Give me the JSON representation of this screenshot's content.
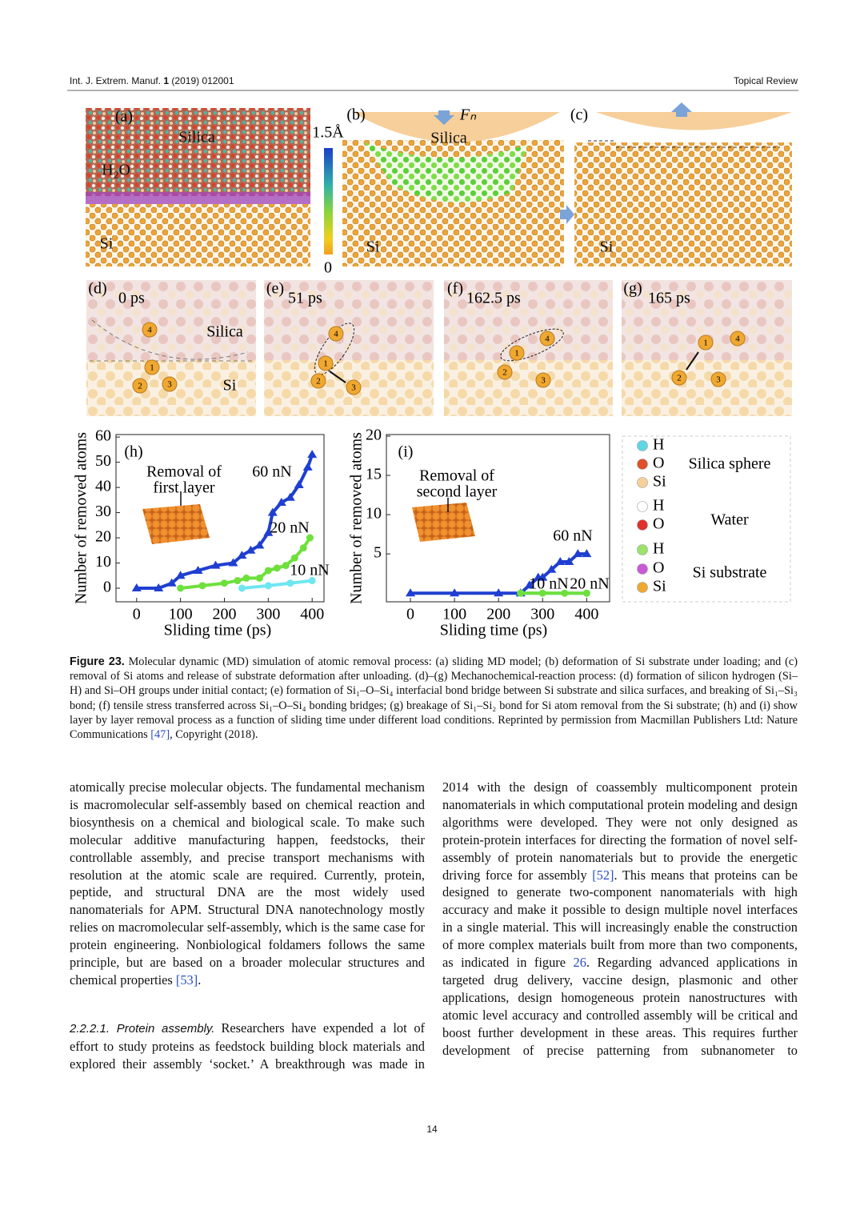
{
  "header": {
    "journal": "Int. J. Extrem. Manuf.",
    "volume": "1",
    "issue": "(2019) 012001",
    "section": "Topical Review"
  },
  "figure": {
    "panels": [
      {
        "label": "(a)",
        "texts": [
          "Silica",
          "H₂O",
          "Si"
        ]
      },
      {
        "label": "(b)",
        "force": "Fₙ",
        "texts": [
          "Silica",
          "Si"
        ]
      },
      {
        "label": "(c)",
        "texts": [
          "Si"
        ]
      },
      {
        "label": "(d)",
        "time": "0 ps",
        "texts": [
          "Silica",
          "Si"
        ],
        "atoms": [
          "4",
          "1",
          "2",
          "3"
        ]
      },
      {
        "label": "(e)",
        "time": "51 ps",
        "atoms": [
          "4",
          "1",
          "2",
          "3"
        ]
      },
      {
        "label": "(f)",
        "time": "162.5 ps",
        "atoms": [
          "4",
          "1",
          "2",
          "3"
        ]
      },
      {
        "label": "(g)",
        "time": "165 ps",
        "atoms": [
          "1",
          "4",
          "2",
          "3"
        ]
      }
    ],
    "colorbar": {
      "max_label": "1.5Å",
      "min_label": "0"
    },
    "legend": [
      {
        "name": "Silica sphere",
        "atoms": [
          {
            "label": "H",
            "color": "#5fd6e6"
          },
          {
            "label": "O",
            "color": "#e0502a"
          },
          {
            "label": "Si",
            "color": "#f6cf9a"
          }
        ]
      },
      {
        "name": "Water",
        "atoms": [
          {
            "label": "H",
            "color": "#ffffff"
          },
          {
            "label": "O",
            "color": "#e0302a"
          }
        ]
      },
      {
        "name": "Si substrate",
        "atoms": [
          {
            "label": "H",
            "color": "#9be36a"
          },
          {
            "label": "O",
            "color": "#c85ad8"
          },
          {
            "label": "Si",
            "color": "#f0a830"
          }
        ]
      }
    ]
  },
  "chart_data": [
    {
      "type": "scatter",
      "panel_label": "(h)",
      "y_label": "Number of removed atoms",
      "x_label": "Sliding time (ps)",
      "annotation": [
        "Removal of",
        "first layer"
      ],
      "xlim": [
        -47,
        427
      ],
      "ylim": [
        -5.4,
        61
      ],
      "xticks": [
        0,
        100,
        200,
        300,
        400
      ],
      "yticks": [
        0,
        10,
        20,
        30,
        40,
        50,
        60
      ],
      "series": [
        {
          "name": "60 nN",
          "color": "#1f3fd0",
          "marker": "triangle",
          "x": [
            0,
            50,
            80,
            100,
            140,
            180,
            220,
            240,
            260,
            280,
            300,
            310,
            330,
            350,
            370,
            390,
            400
          ],
          "values": [
            0,
            0,
            2,
            5,
            7,
            9,
            10,
            13,
            15,
            17,
            22,
            30,
            34,
            36,
            41,
            48,
            53
          ]
        },
        {
          "name": "20 nN",
          "color": "#6ee03c",
          "marker": "circle",
          "x": [
            100,
            150,
            200,
            230,
            250,
            280,
            300,
            320,
            340,
            360,
            380,
            395
          ],
          "values": [
            0,
            1,
            2,
            3,
            4,
            4,
            7,
            8,
            9,
            12,
            16,
            20
          ]
        },
        {
          "name": "10 nN",
          "color": "#6fe6f0",
          "marker": "circle",
          "x": [
            240,
            300,
            350,
            400
          ],
          "values": [
            0,
            1,
            2,
            3
          ]
        }
      ]
    },
    {
      "type": "scatter",
      "panel_label": "(i)",
      "y_label": "Number of removed atoms",
      "x_label": "Sliding time (ps)",
      "annotation": [
        "Removal of",
        "second layer"
      ],
      "xlim": [
        -54.5,
        452
      ],
      "ylim": [
        -1.1,
        20.2
      ],
      "xticks": [
        0,
        100,
        200,
        300,
        400
      ],
      "yticks": [
        5,
        10,
        15,
        20
      ],
      "series": [
        {
          "name": "60 nN",
          "color": "#1f3fd0",
          "marker": "triangle",
          "x": [
            0,
            100,
            200,
            250,
            270,
            290,
            300,
            320,
            340,
            360,
            380,
            400
          ],
          "values": [
            0,
            0,
            0,
            0,
            1,
            2,
            2,
            3,
            4,
            4,
            5,
            5
          ]
        },
        {
          "name": "10 nN",
          "color": "#6fe6f0",
          "marker": "circle",
          "x": [
            250,
            400
          ],
          "values": [
            0,
            0
          ]
        },
        {
          "name": "20 nN",
          "color": "#6ee03c",
          "marker": "circle",
          "x": [
            250,
            300,
            350,
            400
          ],
          "values": [
            0,
            0,
            0,
            0
          ]
        }
      ]
    }
  ],
  "caption": {
    "label": "Figure 23.",
    "parts": [
      " Molecular dynamic (MD) simulation of atomic removal process: (a) sliding MD model; (b) deformation of Si substrate under loading; and (c) removal of Si atoms and release of substrate deformation after unloading. (d)–(g) Mechanochemical-reaction process: (d) formation of silicon hydrogen (Si–H) and Si–OH groups under initial contact; (e) formation of Si₁–O–Si₄ interfacial bond bridge between Si substrate and silica surfaces, and breaking of Si₁–Si₃ bond; (f) tensile stress transferred across Si₁–O–Si₄ bonding bridges; (g) breakage of Si₁–Si₂ bond for Si atom removal from the Si substrate; (h) and (i) show layer by layer removal process as a function of sliding time under different load conditions. Reprinted by permission from Macmillan Publishers Ltd: Nature Communications ",
      "[47]",
      ", Copyright (2018)."
    ]
  },
  "body": {
    "left": [
      {
        "parts": [
          "atomically precise molecular objects. The fundamental mechanism is macromolecular self-assembly based on chemical reaction and biosynthesis on a chemical and biological scale. To make such molecular additive manufacturing happen, feedstocks, their controllable assembly, and precise transport mechanisms with resolution at the atomic scale are required. Currently, protein, peptide, and structural DNA are the most widely used nanomaterials for APM. Structural DNA nanotechnology mostly relies on macromolecular self-assembly, which is the same case for protein engineering. Nonbiological foldamers follows the same principle, but are based on a broader molecular structures and chemical properties ",
          "[53]",
          "."
        ]
      },
      {
        "heading": "2.2.2.1. Protein assembly.",
        "parts": [
          "Researchers have expended a lot of effort to study proteins as feedstock building block materials and explored their assembly ‘socket.’ A breakthrough was made in"
        ]
      }
    ],
    "right": [
      {
        "parts": [
          "2014 with the design of coassembly multicomponent protein nanomaterials in which computational protein modeling and design algorithms were developed. They were not only designed as protein-protein interfaces for directing the formation of novel self-assembly of protein nanomaterials but to provide the energetic driving force for assembly ",
          "[52]",
          ". This means that proteins can be designed to generate two-component nanomaterials with high accuracy and make it possible to design multiple novel interfaces in a single material. This will increasingly enable the construction of more complex materials built from more than two components, as indicated in figure ",
          "26",
          ". Regarding advanced applications in targeted drug delivery, vaccine design, plasmonic and other applications, design homogeneous protein nanostructures with atomic level accuracy and controlled assembly will be critical and boost further development in these areas. This requires further development of precise patterning from subnanometer to"
        ]
      }
    ]
  },
  "page_number": "14"
}
